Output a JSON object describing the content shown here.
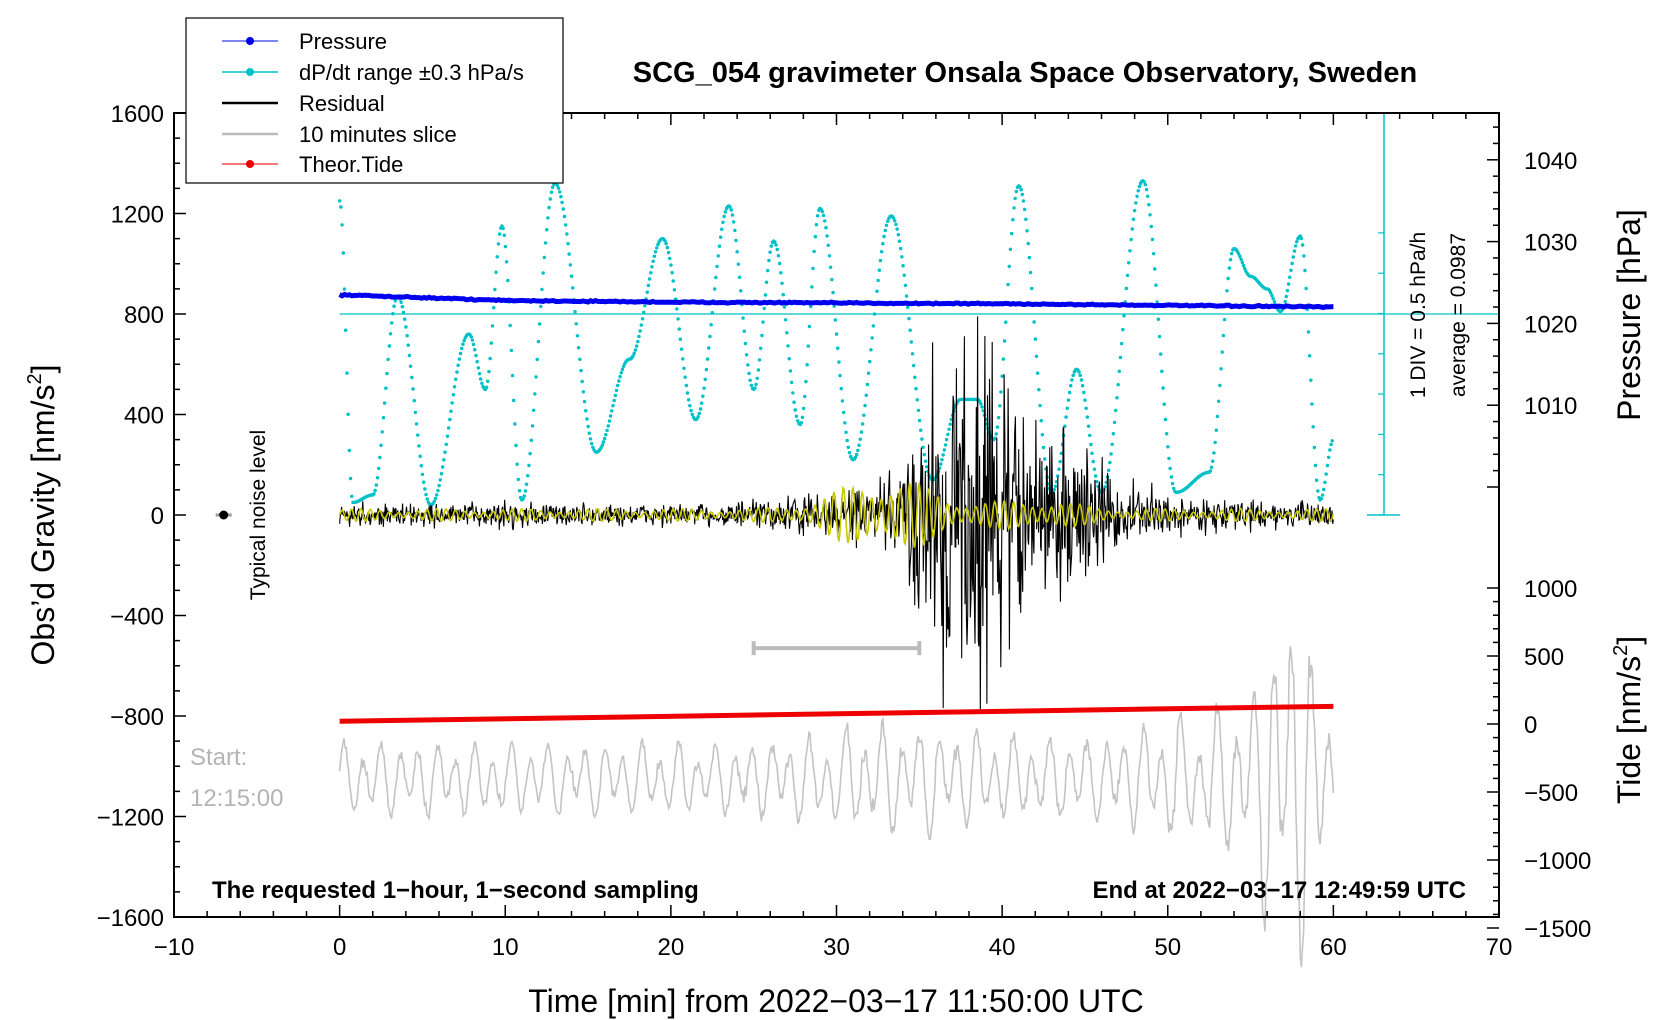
{
  "chart_data": {
    "type": "line",
    "title": "SCG_054 gravimeter Onsala Space Observatory, Sweden",
    "xlabel": "Time [min] from 2022−03−17 11:50:00 UTC",
    "ylabel": "Obs’d Gravity [nm/s²]",
    "ylabel2": "Pressure [hPa]",
    "ylabel3": "Tide [nm/s²]",
    "xlim": [
      -10,
      70
    ],
    "ylim": [
      -1600,
      1600
    ],
    "x_ticks": [
      -10,
      0,
      10,
      20,
      30,
      40,
      50,
      60,
      70
    ],
    "x_tick_labels": [
      "−10",
      "0",
      "10",
      "20",
      "30",
      "40",
      "50",
      "60",
      "70"
    ],
    "y_ticks": [
      -1600,
      -1200,
      -800,
      -400,
      0,
      400,
      800,
      1200,
      1600
    ],
    "y_tick_labels": [
      "−1600",
      "−1200",
      "−800",
      "−400",
      "0",
      "400",
      "800",
      "1200",
      "1600"
    ],
    "pressure_ticks": [
      1040,
      1030,
      1020,
      1010
    ],
    "tide_ticks": [
      1000,
      500,
      0,
      -500,
      -1000,
      -1500
    ],
    "tide_tick_labels": [
      "1000",
      "500",
      "0",
      "−500",
      "−1000",
      "−1500"
    ],
    "legend": [
      "Pressure",
      "dP/dt range ±0.3 hPa/s",
      "Residual",
      "10 minutes slice",
      "Theor.Tide"
    ],
    "legend_position": "top-left",
    "series": [
      {
        "name": "Pressure",
        "color": "#0000ee",
        "x": [
          0,
          10,
          20,
          30,
          40,
          50,
          60
        ],
        "values_hPa": [
          1023.5,
          1022.8,
          1022.6,
          1022.5,
          1022.4,
          1022.2,
          1022.0
        ]
      },
      {
        "name": "dP/dt range ±0.3 hPa/s",
        "color": "#00c0c8",
        "x": [
          0,
          0.8,
          2,
          3.5,
          5.5,
          7.8,
          8.8,
          9.8,
          11,
          13,
          15.5,
          17.5,
          19.5,
          21.5,
          23.5,
          25,
          26.2,
          27.8,
          29,
          31,
          33.3,
          35.8,
          37.5,
          38.5,
          39.5,
          41,
          43,
          44.5,
          46,
          48.5,
          50.5,
          52.5,
          54,
          55,
          56,
          56.8,
          58,
          59.2,
          60
        ],
        "values": [
          1250,
          50,
          80,
          870,
          40,
          720,
          500,
          1150,
          60,
          1320,
          250,
          620,
          1100,
          380,
          1230,
          500,
          1090,
          360,
          1220,
          220,
          1190,
          140,
          460,
          460,
          300,
          1310,
          90,
          580,
          90,
          1330,
          90,
          170,
          1060,
          950,
          900,
          810,
          1110,
          60,
          300
        ]
      },
      {
        "name": "Residual",
        "color": "#000000",
        "amplitude_nms2": [
          60,
          60,
          60,
          60,
          60,
          70,
          60,
          60,
          60,
          60,
          60,
          60,
          70,
          80,
          100,
          120,
          150,
          240,
          900,
          1100,
          700,
          500,
          400,
          250,
          150,
          120,
          80,
          80,
          70,
          60,
          60
        ]
      },
      {
        "name": "10 minutes slice",
        "color": "#bbbbbb",
        "x_range": [
          25,
          35
        ]
      },
      {
        "name": "Theor.Tide",
        "color": "#ee0000",
        "x": [
          0,
          60
        ],
        "values_nms2": [
          20,
          130
        ]
      }
    ],
    "slice_trace_color": "#c4c4c4",
    "filtered_color": "#c8c800",
    "noise_marker_x": -7,
    "noise_marker_y": 0
  },
  "annotations": {
    "noise": "Typical noise level",
    "start_label": "Start:",
    "start_time": "12:15:00",
    "bottom_left": "The requested 1−hour, 1−second sampling",
    "bottom_right": "End at 2022−03−17 12:49:59 UTC",
    "div_label": "1 DIV = 0.5 hPa/h",
    "average_label": "average = 0.0987"
  }
}
